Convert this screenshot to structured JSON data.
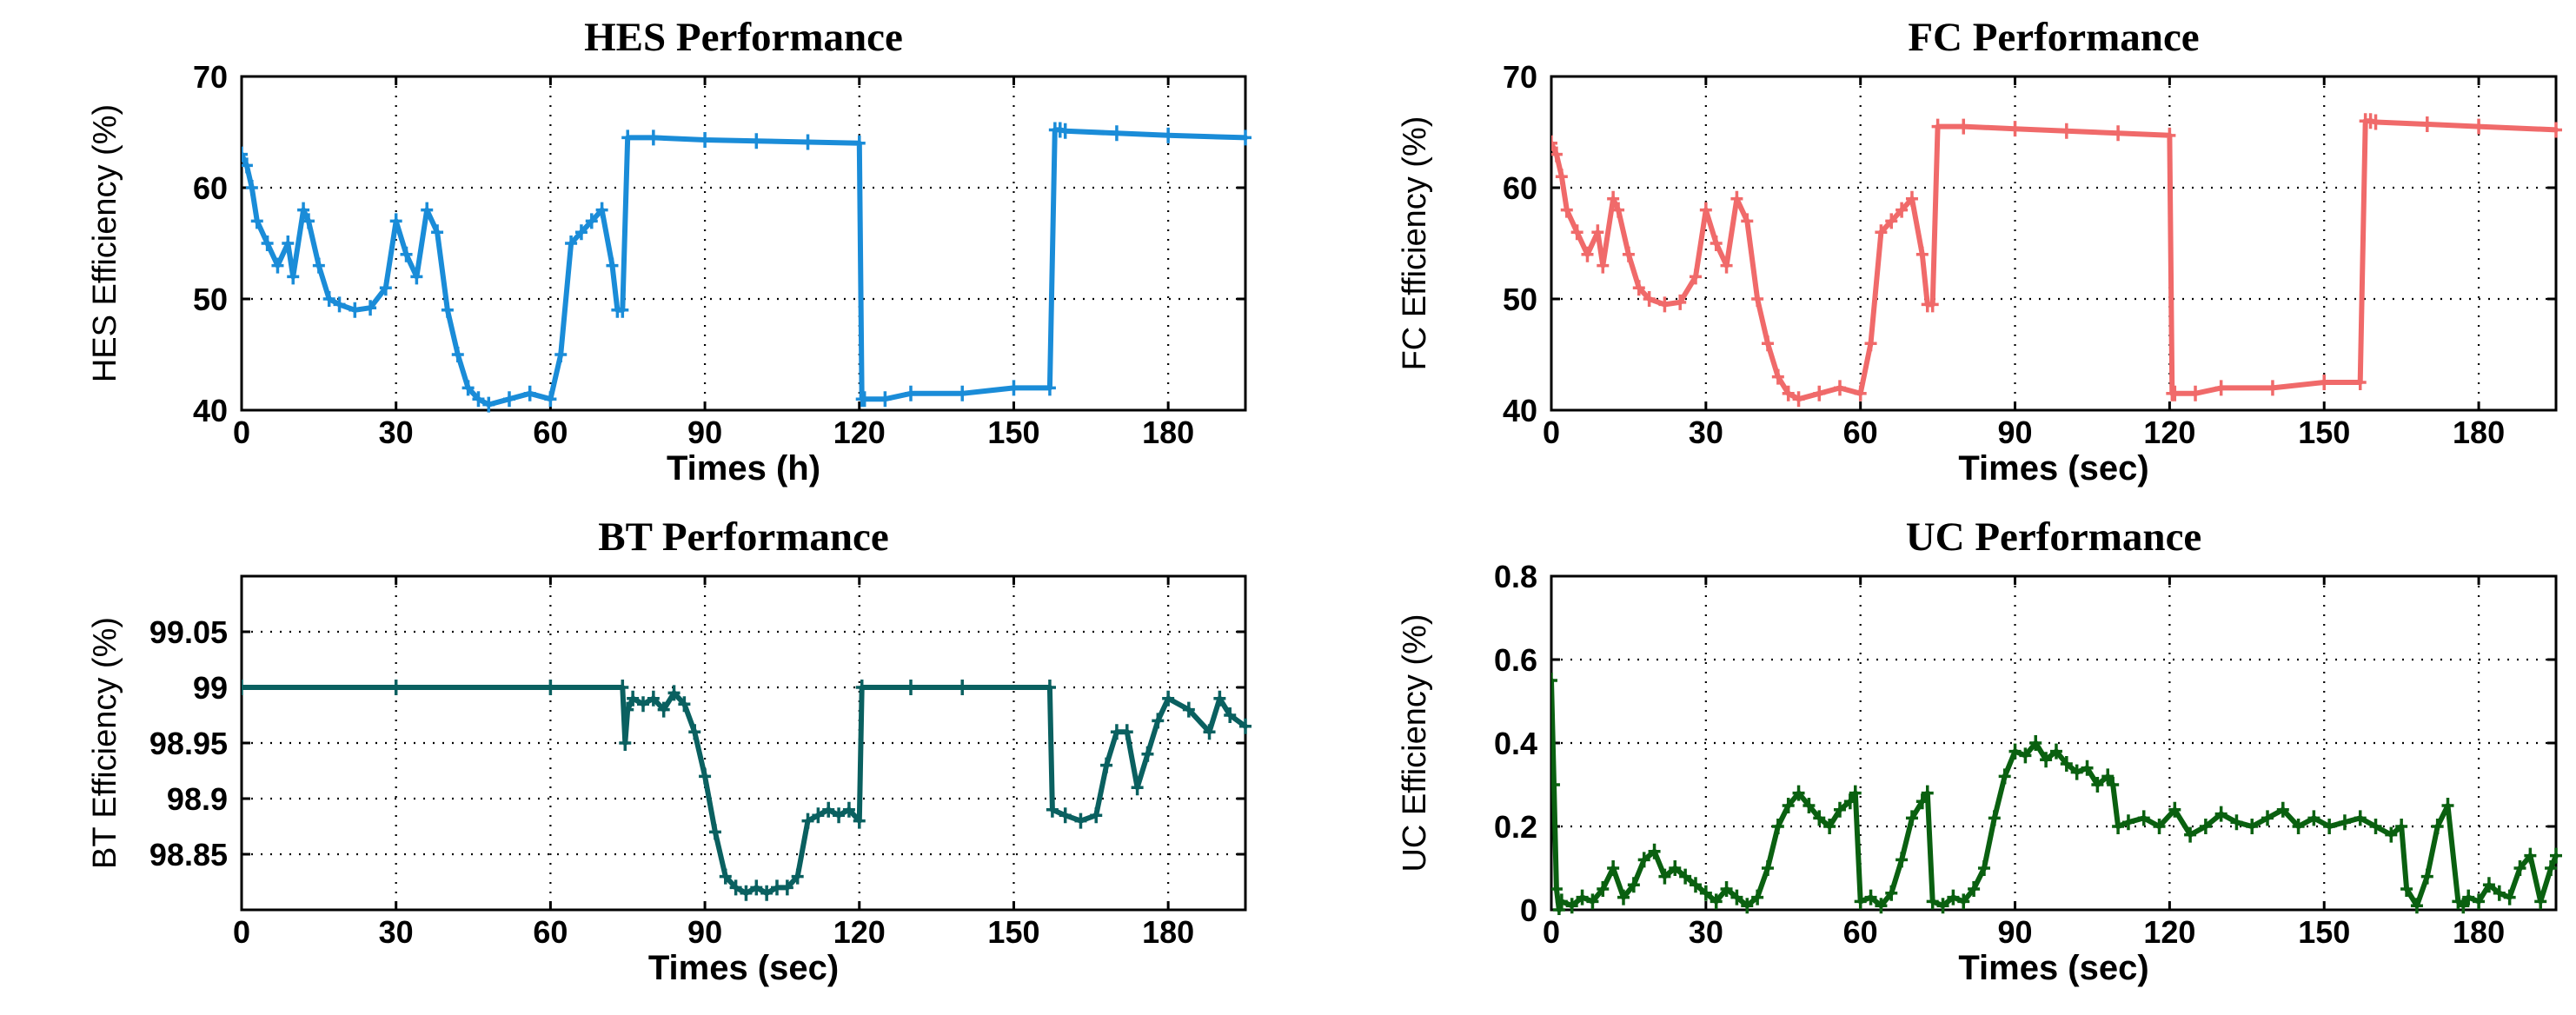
{
  "chart_data": [
    {
      "type": "line",
      "title": "HES Performance",
      "xlabel": "Times (h)",
      "ylabel": "HES Efficiency (%)",
      "xlim": [
        0,
        195
      ],
      "ylim": [
        40,
        70
      ],
      "xticks": [
        0,
        30,
        60,
        90,
        120,
        150,
        180
      ],
      "yticks": [
        40,
        50,
        60,
        70
      ],
      "ytick_labels": [
        "40",
        "50",
        "60",
        "70"
      ],
      "grid": true,
      "color": "#1a8cd8",
      "marker": "plus",
      "series": [
        {
          "name": "HES Efficiency",
          "x": [
            0,
            1,
            2,
            3,
            5,
            7,
            9,
            10,
            12,
            13,
            15,
            17,
            19,
            22,
            25,
            28,
            30,
            32,
            34,
            36,
            38,
            40,
            42,
            44,
            46,
            48,
            52,
            56,
            60,
            62,
            64,
            66,
            68,
            70,
            72,
            73,
            74,
            75,
            80,
            90,
            100,
            110,
            120,
            120.5,
            121,
            125,
            130,
            140,
            150,
            157,
            158,
            159,
            160,
            170,
            180,
            195
          ],
          "y": [
            63,
            62,
            60,
            57,
            55,
            53,
            55,
            52,
            58,
            57,
            53,
            50,
            49.5,
            49,
            49.2,
            51,
            57,
            54,
            52,
            58,
            56,
            49,
            45,
            42,
            41,
            40.5,
            41,
            41.5,
            41,
            45,
            55,
            56,
            57,
            58,
            53,
            49,
            49,
            64.5,
            64.5,
            64.3,
            64.2,
            64.1,
            64,
            41,
            41,
            41,
            41.5,
            41.5,
            42,
            42,
            65.2,
            65.2,
            65.1,
            64.9,
            64.7,
            64.5
          ]
        }
      ]
    },
    {
      "type": "line",
      "title": "FC Performance",
      "xlabel": "Times (sec)",
      "ylabel": "FC Efficiency (%)",
      "xlim": [
        0,
        195
      ],
      "ylim": [
        40,
        70
      ],
      "xticks": [
        0,
        30,
        60,
        90,
        120,
        150,
        180
      ],
      "yticks": [
        40,
        50,
        60,
        70
      ],
      "ytick_labels": [
        "40",
        "50",
        "60",
        "70"
      ],
      "grid": true,
      "color": "#f06a6a",
      "marker": "plus",
      "series": [
        {
          "name": "FC Efficiency",
          "x": [
            0,
            1,
            2,
            3,
            5,
            7,
            9,
            10,
            12,
            13,
            15,
            17,
            19,
            22,
            25,
            28,
            30,
            32,
            34,
            36,
            38,
            40,
            42,
            44,
            46,
            48,
            52,
            56,
            60,
            62,
            64,
            66,
            68,
            70,
            72,
            73,
            74,
            75,
            80,
            90,
            100,
            110,
            120,
            120.5,
            121,
            125,
            130,
            140,
            150,
            157,
            158,
            159,
            160,
            170,
            180,
            195
          ],
          "y": [
            64,
            63,
            61,
            58,
            56,
            54,
            56,
            53,
            59,
            58,
            54,
            51,
            50,
            49.5,
            49.7,
            52,
            58,
            55,
            53,
            59,
            57,
            50,
            46,
            43,
            41.5,
            41,
            41.5,
            42,
            41.5,
            46,
            56,
            57,
            58,
            59,
            54,
            49.5,
            49.5,
            65.5,
            65.5,
            65.3,
            65.1,
            64.9,
            64.7,
            41.5,
            41.5,
            41.5,
            42,
            42,
            42.5,
            42.5,
            66,
            66,
            65.9,
            65.7,
            65.5,
            65.2
          ]
        }
      ]
    },
    {
      "type": "line",
      "title": "BT Performance",
      "xlabel": "Times (sec)",
      "ylabel": "BT Efficiency (%)",
      "xlim": [
        0,
        195
      ],
      "ylim": [
        98.8,
        99.1
      ],
      "xticks": [
        0,
        30,
        60,
        90,
        120,
        150,
        180
      ],
      "yticks": [
        98.85,
        98.9,
        98.95,
        99,
        99.05
      ],
      "ytick_labels": [
        "98.85",
        "98.9",
        "98.95",
        "99",
        "99.05"
      ],
      "grid": true,
      "color": "#0a6060",
      "marker": "plus",
      "series": [
        {
          "name": "BT Efficiency",
          "x": [
            0,
            30,
            60,
            74,
            74.5,
            75,
            76,
            78,
            80,
            82,
            84,
            86,
            88,
            90,
            92,
            94,
            96,
            98,
            100,
            102,
            104,
            106,
            108,
            110,
            112,
            114,
            116,
            118,
            120,
            120.5,
            130,
            140,
            157,
            157.5,
            160,
            163,
            166,
            168,
            170,
            172,
            174,
            176,
            178,
            180,
            184,
            188,
            190,
            192,
            195
          ],
          "y": [
            99,
            99,
            99,
            99,
            98.95,
            98.98,
            98.99,
            98.985,
            98.99,
            98.98,
            98.995,
            98.985,
            98.96,
            98.92,
            98.87,
            98.83,
            98.82,
            98.815,
            98.82,
            98.815,
            98.82,
            98.82,
            98.83,
            98.88,
            98.885,
            98.89,
            98.885,
            98.89,
            98.88,
            99,
            99,
            99,
            99,
            98.89,
            98.885,
            98.88,
            98.885,
            98.93,
            98.96,
            98.96,
            98.91,
            98.94,
            98.97,
            98.99,
            98.98,
            98.96,
            98.99,
            98.975,
            98.965
          ]
        }
      ]
    },
    {
      "type": "line",
      "title": "UC Performance",
      "xlabel": "Times (sec)",
      "ylabel": "UC Efficiency (%)",
      "xlim": [
        0,
        195
      ],
      "ylim": [
        0,
        0.8
      ],
      "xticks": [
        0,
        30,
        60,
        90,
        120,
        150,
        180
      ],
      "yticks": [
        0,
        0.2,
        0.4,
        0.6,
        0.8
      ],
      "ytick_labels": [
        "0",
        "0.2",
        "0.4",
        "0.6",
        "0.8"
      ],
      "grid": true,
      "color": "#0a6010",
      "marker": "plus",
      "series": [
        {
          "name": "UC Efficiency",
          "x": [
            0,
            0.5,
            1,
            1.5,
            2,
            4,
            6,
            8,
            10,
            12,
            14,
            16,
            18,
            20,
            22,
            24,
            26,
            28,
            30,
            32,
            34,
            36,
            38,
            40,
            42,
            44,
            46,
            48,
            50,
            52,
            54,
            56,
            58,
            59,
            60,
            62,
            64,
            66,
            68,
            70,
            72,
            73,
            74,
            76,
            78,
            80,
            82,
            84,
            86,
            88,
            90,
            92,
            94,
            96,
            98,
            100,
            102,
            104,
            106,
            108,
            109,
            110,
            112,
            115,
            118,
            121,
            124,
            127,
            130,
            133,
            136,
            139,
            142,
            145,
            148,
            151,
            154,
            157,
            160,
            163,
            165,
            166,
            168,
            170,
            172,
            174,
            176,
            177,
            178,
            180,
            182,
            184,
            186,
            188,
            190,
            192,
            194,
            195
          ],
          "y": [
            0.55,
            0.3,
            0.05,
            0,
            0.02,
            0.01,
            0.03,
            0.02,
            0.05,
            0.1,
            0.03,
            0.06,
            0.12,
            0.14,
            0.08,
            0.1,
            0.08,
            0.06,
            0.04,
            0.02,
            0.05,
            0.03,
            0.01,
            0.03,
            0.1,
            0.2,
            0.25,
            0.28,
            0.25,
            0.22,
            0.2,
            0.24,
            0.26,
            0.28,
            0.02,
            0.03,
            0.01,
            0.04,
            0.12,
            0.22,
            0.26,
            0.28,
            0.02,
            0.01,
            0.03,
            0.02,
            0.05,
            0.1,
            0.22,
            0.32,
            0.38,
            0.37,
            0.4,
            0.36,
            0.38,
            0.35,
            0.33,
            0.34,
            0.3,
            0.32,
            0.3,
            0.2,
            0.21,
            0.22,
            0.2,
            0.24,
            0.18,
            0.2,
            0.23,
            0.21,
            0.2,
            0.22,
            0.24,
            0.2,
            0.22,
            0.2,
            0.21,
            0.22,
            0.2,
            0.18,
            0.2,
            0.05,
            0.01,
            0.08,
            0.2,
            0.25,
            0.02,
            0.01,
            0.03,
            0.02,
            0.06,
            0.04,
            0.03,
            0.1,
            0.13,
            0.02,
            0.1,
            0.13
          ]
        }
      ]
    }
  ]
}
